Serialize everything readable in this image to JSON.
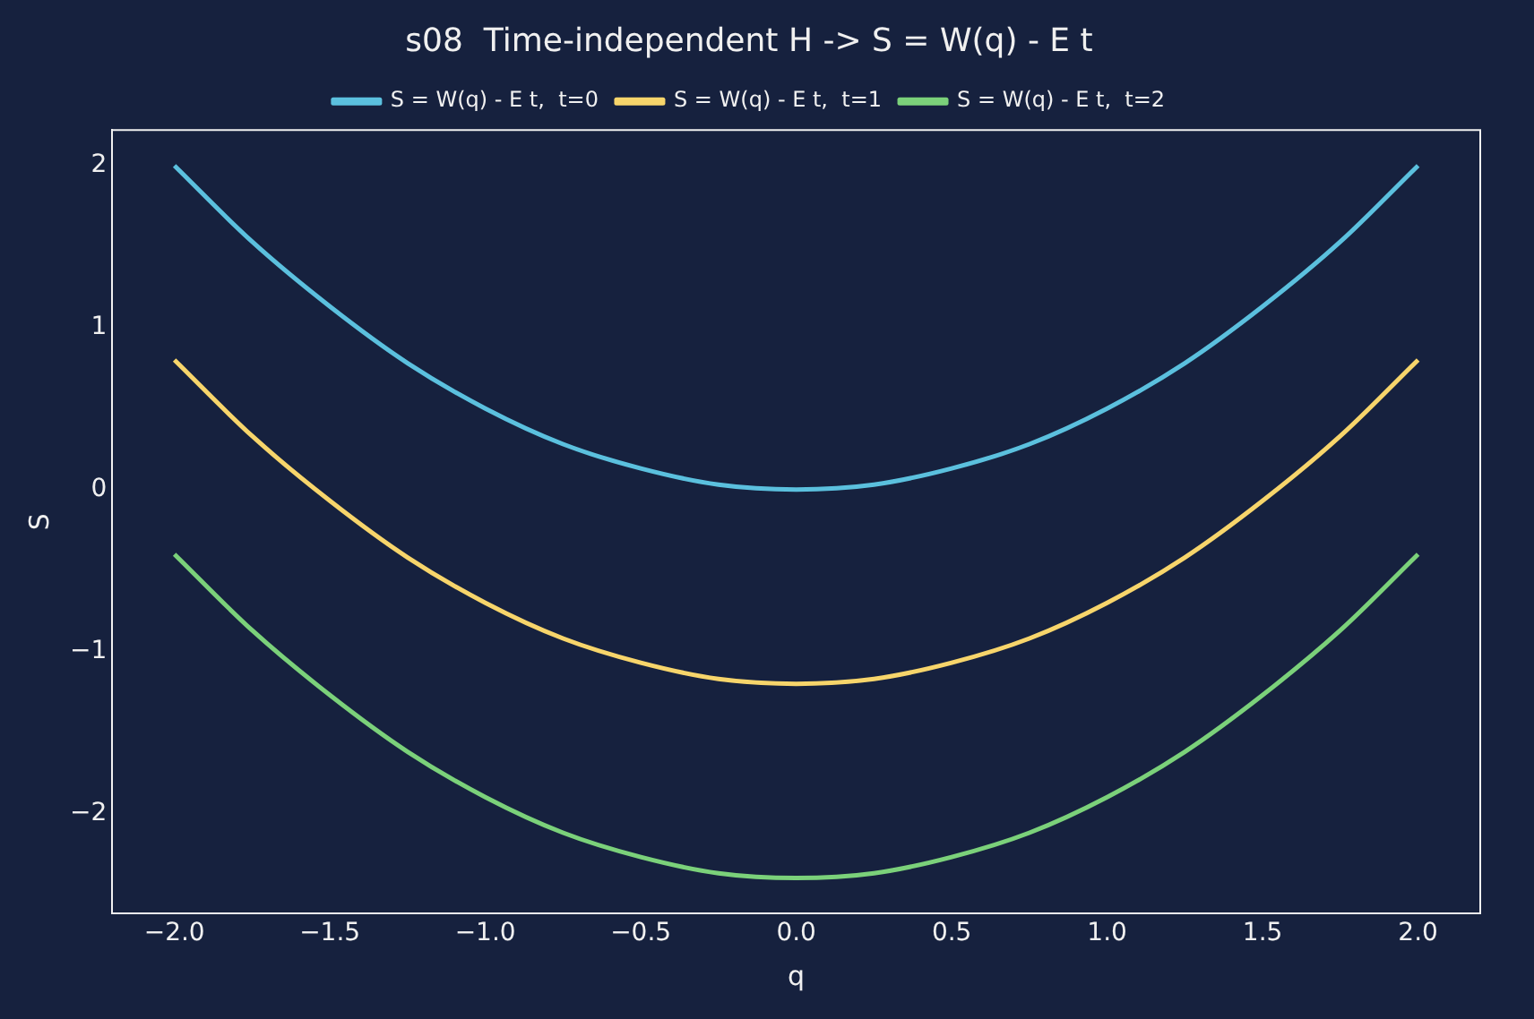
{
  "chart_data": {
    "type": "line",
    "title": "s08  Time-independent H -> S = W(q) - E t",
    "xlabel": "q",
    "ylabel": "S",
    "x": [
      -2,
      -1.75,
      -1.5,
      -1.25,
      -1,
      -0.75,
      -0.5,
      -0.25,
      0,
      0.25,
      0.5,
      0.75,
      1,
      1.25,
      1.5,
      1.75,
      2
    ],
    "series": [
      {
        "name": "S = W(q) - E t,  t=0",
        "color": "#5bc0de",
        "values": [
          2,
          1.53,
          1.13,
          0.78,
          0.5,
          0.28,
          0.13,
          0.03,
          0,
          0.03,
          0.13,
          0.28,
          0.5,
          0.78,
          1.13,
          1.53,
          2
        ]
      },
      {
        "name": "S = W(q) - E t,  t=1",
        "color": "#f7d56b",
        "values": [
          0.8,
          0.33,
          -0.07,
          -0.42,
          -0.7,
          -0.92,
          -1.07,
          -1.17,
          -1.2,
          -1.17,
          -1.07,
          -0.92,
          -0.7,
          -0.42,
          -0.07,
          0.33,
          0.8
        ]
      },
      {
        "name": "S = W(q) - E t,  t=2",
        "color": "#7bd17a",
        "values": [
          -0.4,
          -0.87,
          -1.27,
          -1.62,
          -1.9,
          -2.12,
          -2.27,
          -2.37,
          -2.4,
          -2.37,
          -2.27,
          -2.12,
          -1.9,
          -1.62,
          -1.27,
          -0.87,
          -0.4
        ]
      }
    ],
    "xlim": [
      -2.2,
      2.2
    ],
    "ylim": [
      -2.62,
      2.22
    ],
    "xticks": [
      {
        "value": -2,
        "label": "−2.0"
      },
      {
        "value": -1.5,
        "label": "−1.5"
      },
      {
        "value": -1,
        "label": "−1.0"
      },
      {
        "value": -0.5,
        "label": "−0.5"
      },
      {
        "value": 0,
        "label": "0.0"
      },
      {
        "value": 0.5,
        "label": "0.5"
      },
      {
        "value": 1,
        "label": "1.0"
      },
      {
        "value": 1.5,
        "label": "1.5"
      },
      {
        "value": 2,
        "label": "2.0"
      }
    ],
    "yticks": [
      {
        "value": -2,
        "label": "−2"
      },
      {
        "value": -1,
        "label": "−1"
      },
      0,
      1,
      2
    ],
    "legend": "top"
  }
}
